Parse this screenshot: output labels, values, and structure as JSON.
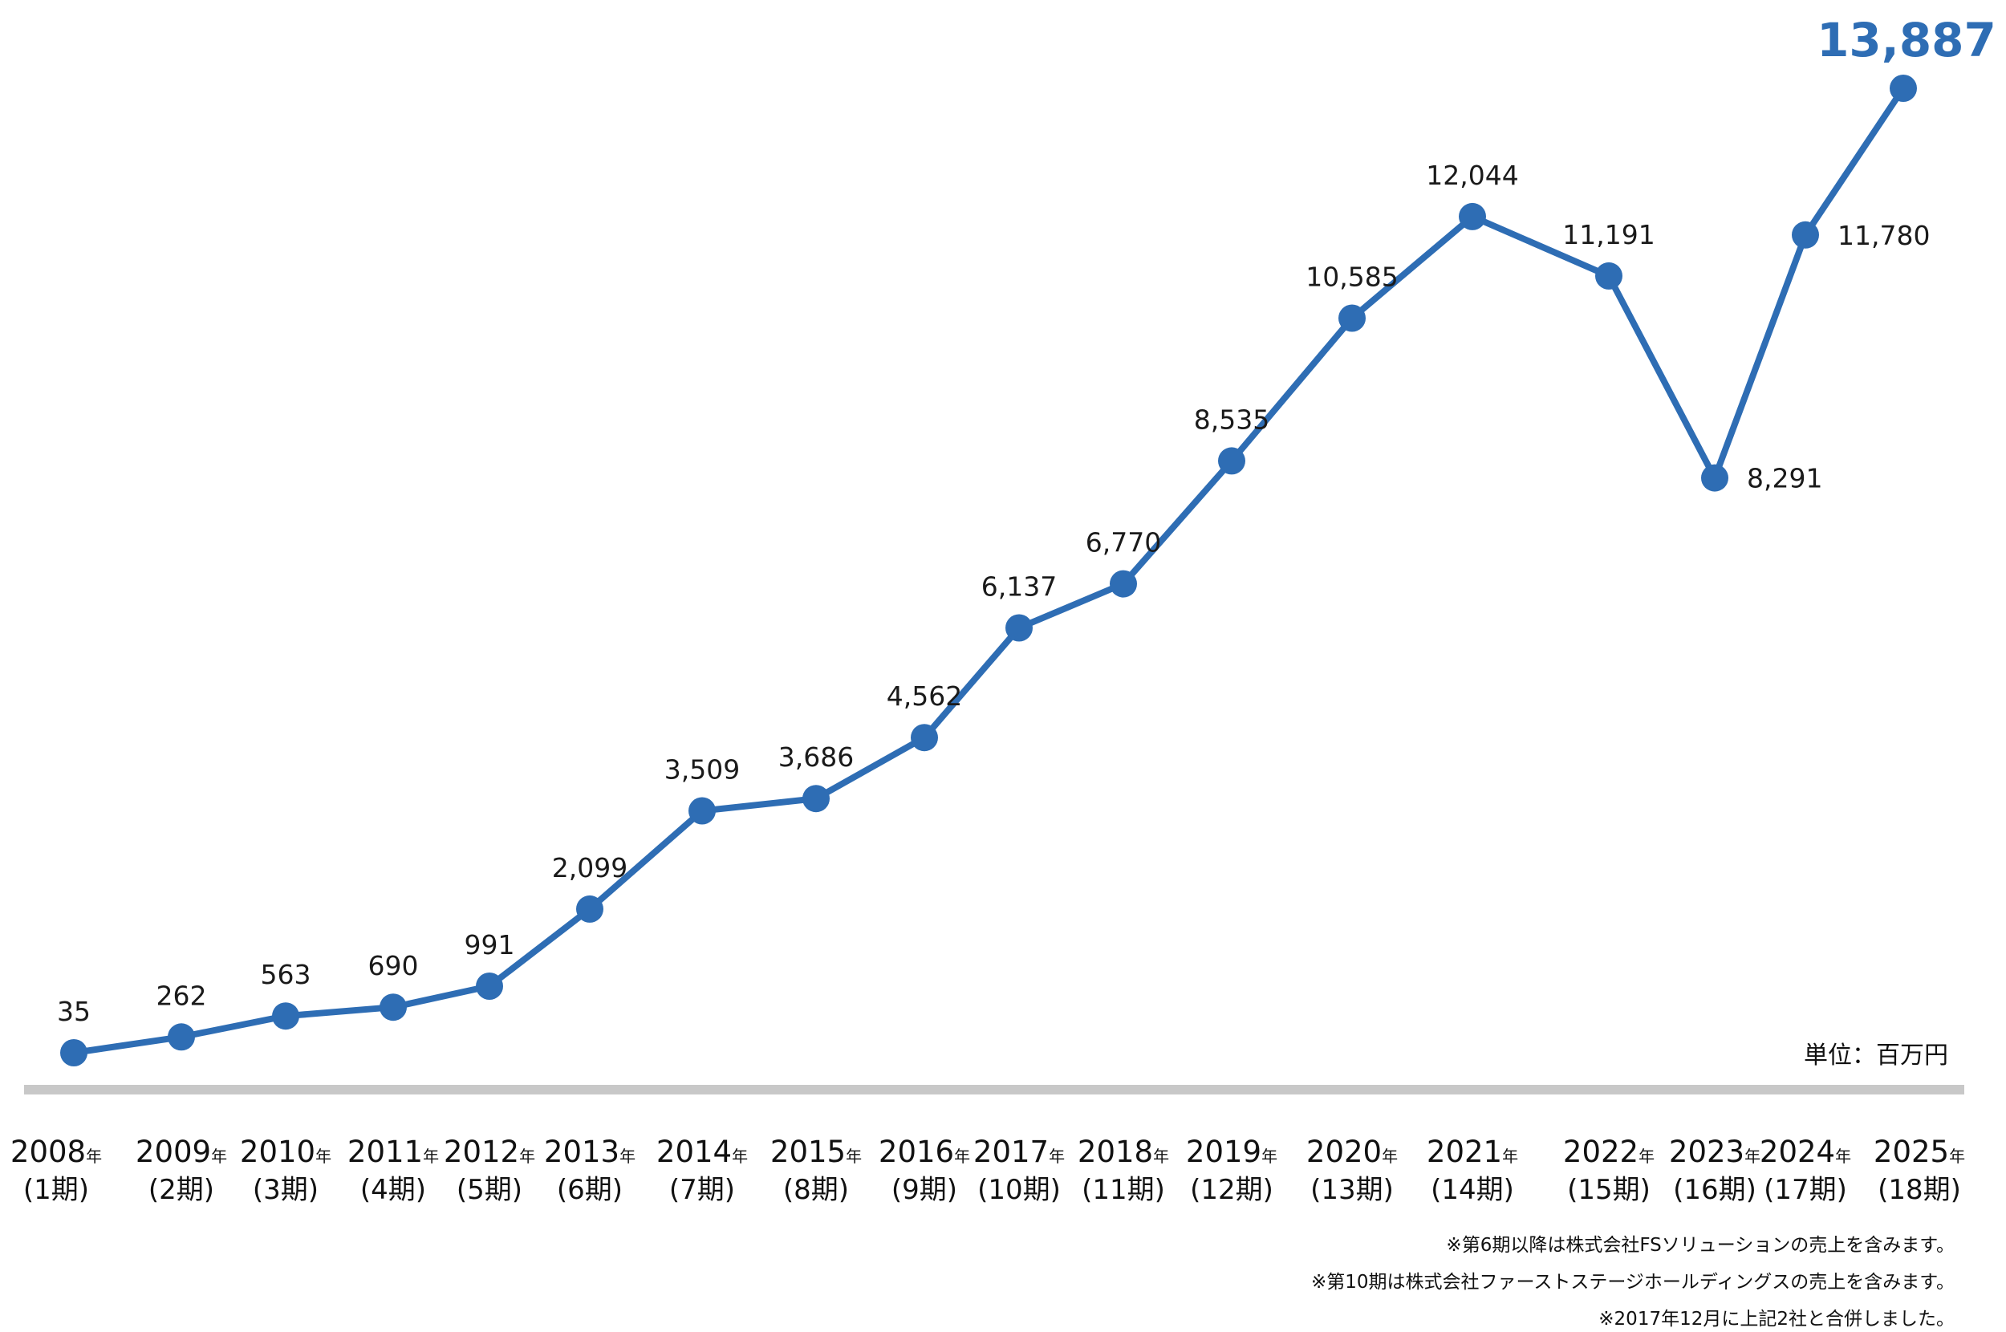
{
  "colors": {
    "line": "#2E6DB4",
    "highlight": "#2E6DB4",
    "baseline": "#c8c8c8",
    "text": "#111111"
  },
  "chart_data": {
    "type": "line",
    "x": [
      "2008",
      "2009",
      "2010",
      "2011",
      "2012",
      "2013",
      "2014",
      "2015",
      "2016",
      "2017",
      "2018",
      "2019",
      "2020",
      "2021",
      "2022",
      "2023",
      "2024",
      "2025"
    ],
    "periods": [
      "(1期)",
      "(2期)",
      "(3期)",
      "(4期)",
      "(5期)",
      "(6期)",
      "(7期)",
      "(8期)",
      "(9期)",
      "(10期)",
      "(11期)",
      "(12期)",
      "(13期)",
      "(14期)",
      "(15期)",
      "(16期)",
      "(17期)",
      "(18期)"
    ],
    "year_suffix": "年",
    "series": [
      {
        "values": [
          35,
          262,
          563,
          690,
          991,
          2099,
          3509,
          3686,
          4562,
          6137,
          6770,
          8535,
          10585,
          12044,
          11191,
          8291,
          11780,
          13887
        ],
        "labels": [
          "35",
          "262",
          "563",
          "690",
          "991",
          "2,099",
          "3,509",
          "3,686",
          "4,562",
          "6,137",
          "6,770",
          "8,535",
          "10,585",
          "12,044",
          "11,191",
          "8,291",
          "11,780",
          "13,887"
        ]
      }
    ],
    "highlight_index": 17,
    "unit_label": "単位：百万円",
    "grid": false,
    "legend": "none"
  },
  "notes": [
    "※第6期以降は株式会社FSソリューションの売上を含みます。",
    "※第10期は株式会社ファーストステージホールディングスの売上を含みます。",
    "※2017年12月に上記2社と合併しました。"
  ]
}
